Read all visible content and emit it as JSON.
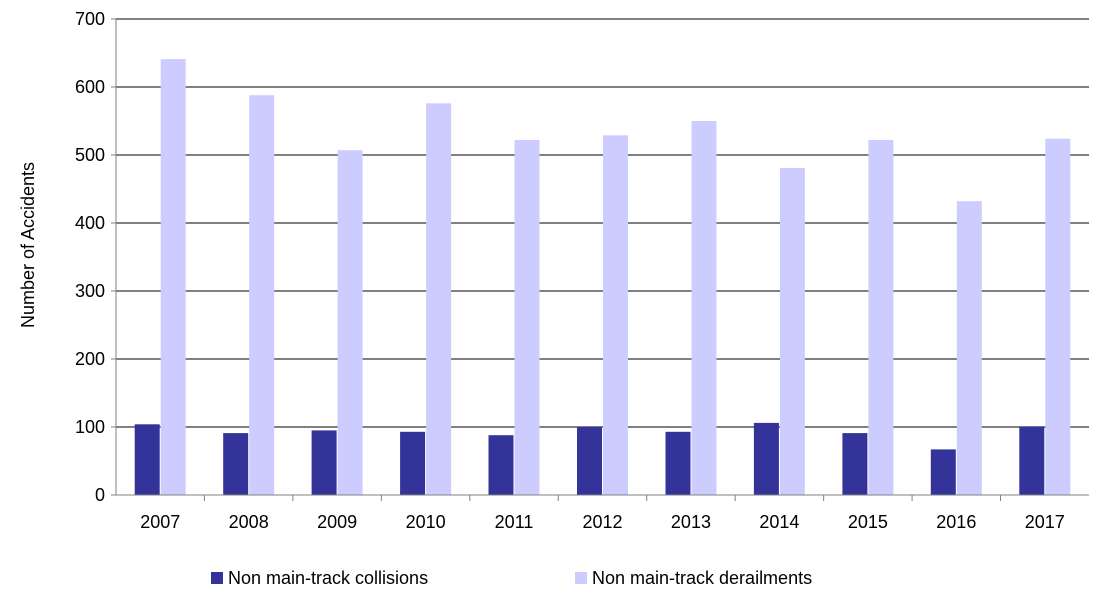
{
  "chart_data": {
    "type": "bar",
    "ylabel": "Number of Accidents",
    "ylim": [
      0,
      700
    ],
    "yticks": [
      0,
      100,
      200,
      300,
      400,
      500,
      600,
      700
    ],
    "grid": true,
    "legend_position": "bottom",
    "categories": [
      "2007",
      "2008",
      "2009",
      "2010",
      "2011",
      "2012",
      "2013",
      "2014",
      "2015",
      "2016",
      "2017"
    ],
    "series": [
      {
        "name": "Non main-track collisions",
        "color": "#333399",
        "values": [
          104,
          91,
          95,
          93,
          88,
          100,
          93,
          106,
          91,
          67,
          101
        ]
      },
      {
        "name": "Non main-track derailments",
        "color": "#CCCCFF",
        "values": [
          641,
          588,
          507,
          576,
          522,
          529,
          550,
          481,
          522,
          432,
          524
        ]
      }
    ]
  }
}
